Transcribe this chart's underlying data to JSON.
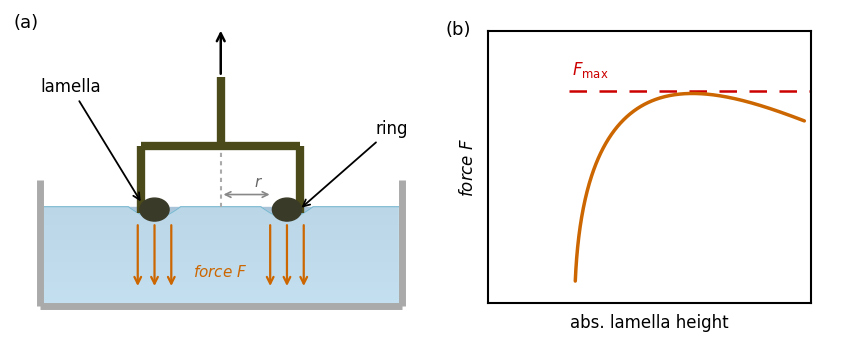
{
  "fig_width": 8.49,
  "fig_height": 3.48,
  "dpi": 100,
  "bg_color": "#ffffff",
  "label_a": "(a)",
  "label_b": "(b)",
  "panel_a": {
    "ring_color": "#4a4a1a",
    "water_color_top": "#b8d8e8",
    "water_color_bot": "#d6eaf5",
    "tank_color": "#aaaaaa",
    "ball_color": "#3a3a28",
    "arrow_color": "#cc6600",
    "radius_arrow_color": "#888888",
    "label_lamella": "lamella",
    "label_ring": "ring",
    "label_force": "force $F$",
    "label_r": "$r$"
  },
  "panel_b": {
    "curve_color": "#cc6600",
    "dashed_color": "#cc0000",
    "xlabel": "abs. lamella height",
    "ylabel": "force $F$",
    "fmax_label": "$F_\\mathrm{max}$"
  }
}
